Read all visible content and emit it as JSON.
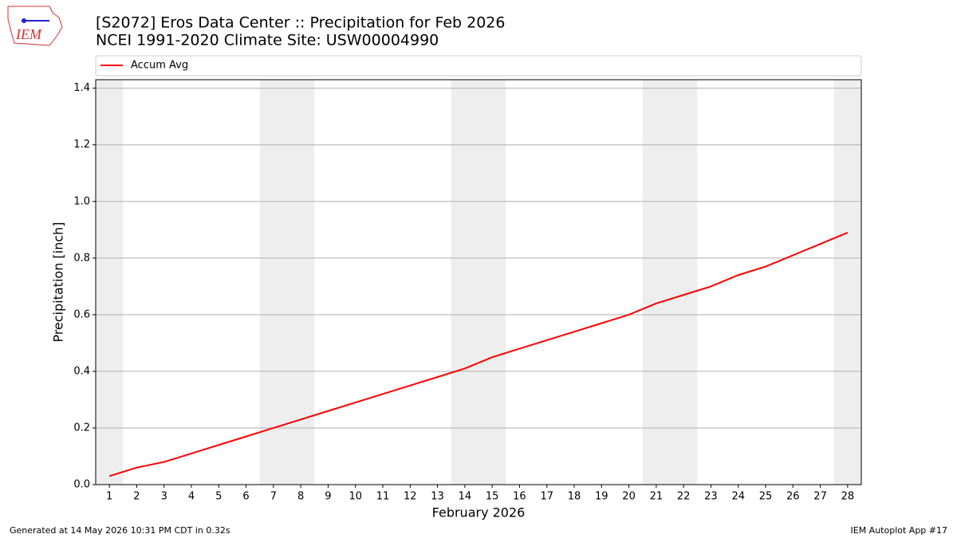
{
  "chart_data": {
    "type": "line",
    "title": "[S2072] Eros Data Center :: Precipitation for Feb 2026",
    "subtitle": "NCEI 1991-2020 Climate Site: USW00004990",
    "logo_text": "IEM",
    "x_label": "February 2026",
    "y_label": "Precipitation [inch]",
    "x": [
      1,
      2,
      3,
      4,
      5,
      6,
      7,
      8,
      9,
      10,
      11,
      12,
      13,
      14,
      15,
      16,
      17,
      18,
      19,
      20,
      21,
      22,
      23,
      24,
      25,
      26,
      27,
      28
    ],
    "series": [
      {
        "name": "Accum Avg",
        "color": "#ff0000",
        "values": [
          0.03,
          0.06,
          0.08,
          0.11,
          0.14,
          0.17,
          0.2,
          0.23,
          0.26,
          0.29,
          0.32,
          0.35,
          0.38,
          0.41,
          0.45,
          0.48,
          0.51,
          0.54,
          0.57,
          0.6,
          0.64,
          0.67,
          0.7,
          0.74,
          0.77,
          0.81,
          0.85,
          0.89
        ]
      }
    ],
    "shaded_ranges": [
      [
        0.5,
        1.5
      ],
      [
        6.5,
        8.5
      ],
      [
        13.5,
        15.5
      ],
      [
        20.5,
        22.5
      ],
      [
        27.5,
        28.5
      ]
    ],
    "shade_color": "#eeeeee",
    "xlim": [
      0.5,
      28.5
    ],
    "xticks": [
      1,
      2,
      3,
      4,
      5,
      6,
      7,
      8,
      9,
      10,
      11,
      12,
      13,
      14,
      15,
      16,
      17,
      18,
      19,
      20,
      21,
      22,
      23,
      24,
      25,
      26,
      27,
      28
    ],
    "ylim": [
      0,
      1.43
    ],
    "yticks": [
      {
        "value": 0,
        "label": "0.0"
      },
      {
        "value": 0.2,
        "label": "0.2"
      },
      {
        "value": 0.4,
        "label": "0.4"
      },
      {
        "value": 0.6,
        "label": "0.6"
      },
      {
        "value": 0.8,
        "label": "0.8"
      },
      {
        "value": 1,
        "label": "1.0"
      },
      {
        "value": 1.2,
        "label": "1.2"
      },
      {
        "value": 1.4,
        "label": "1.4"
      }
    ],
    "grid": true,
    "legend": "top",
    "footer_left": "Generated at 14 May 2026 10:31 PM CDT in 0.32s",
    "footer_right": "IEM Autoplot App #17"
  }
}
